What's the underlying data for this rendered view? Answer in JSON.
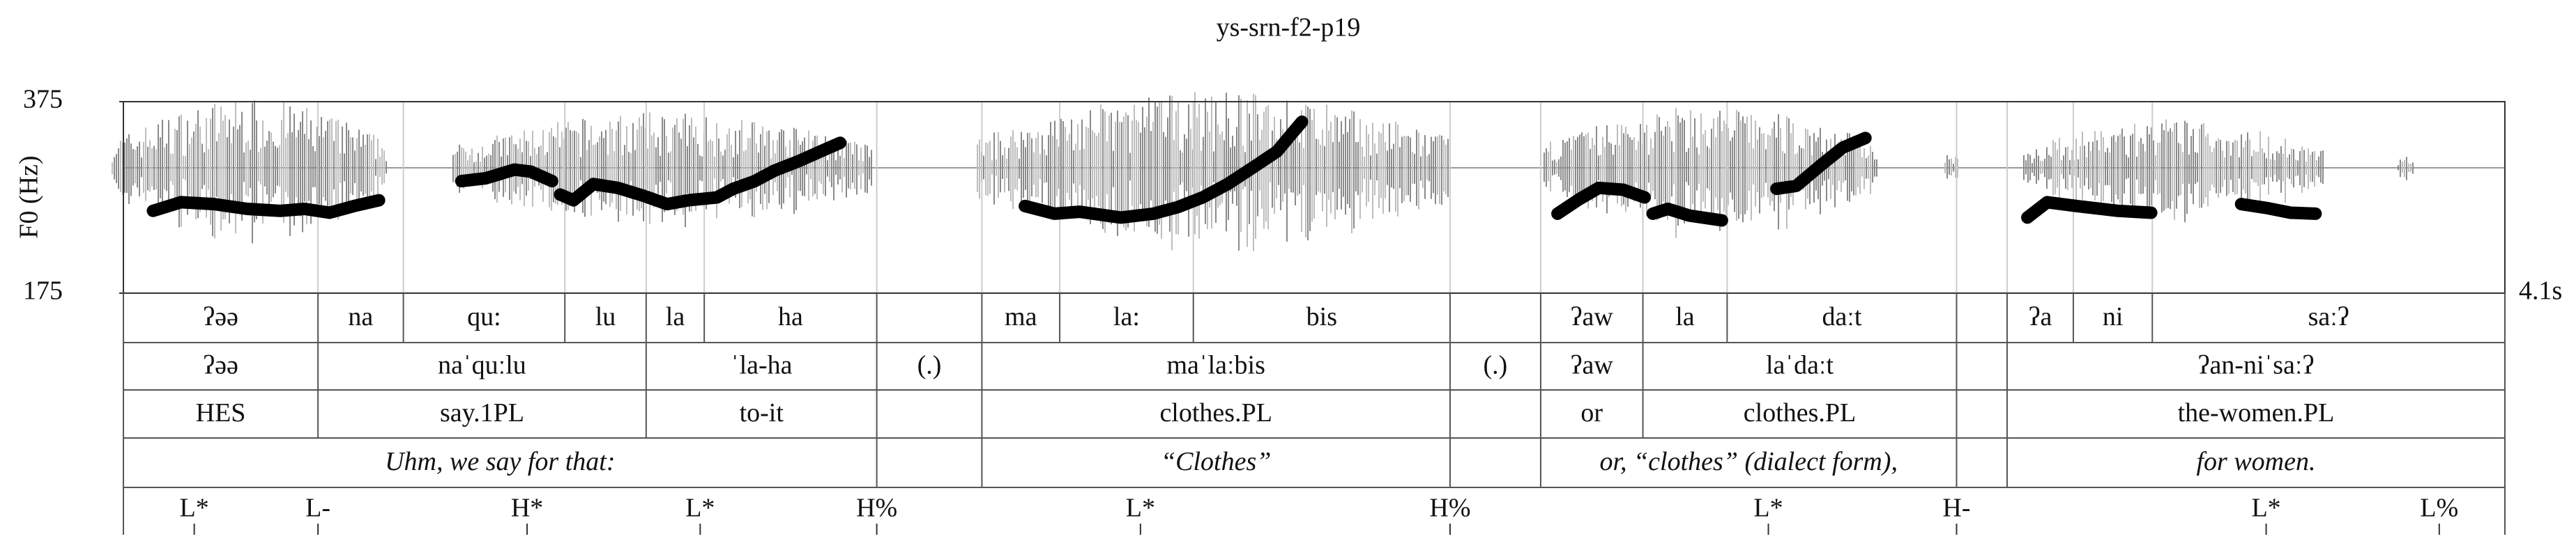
{
  "chart_data": {
    "type": "pitch-track",
    "title": "ys-srn-f2-p19",
    "y_label": "F0 (Hz)",
    "ylim": [
      175,
      375
    ],
    "yticks": [
      175,
      375
    ],
    "xlim": [
      0,
      4.1
    ],
    "xticks": [
      {
        "value": 4.1,
        "label": "4.1s"
      }
    ],
    "color": "#000000",
    "x": [
      0.051,
      0.099,
      0.156,
      0.213,
      0.27,
      0.312,
      0.355,
      0.397,
      0.44,
      null,
      0.582,
      0.624,
      0.673,
      0.701,
      0.738,
      null,
      0.752,
      0.775,
      0.809,
      0.851,
      0.894,
      0.936,
      0.973,
      1.022,
      1.05,
      1.087,
      1.121,
      1.163,
      1.2,
      1.234,
      null,
      1.552,
      1.603,
      1.646,
      1.717,
      1.773,
      1.816,
      1.858,
      1.901,
      1.944,
      1.986,
      2.015,
      2.029,
      null,
      2.469,
      2.506,
      2.54,
      2.582,
      2.619,
      null,
      2.633,
      2.659,
      2.696,
      2.752,
      null,
      2.846,
      2.88,
      2.923,
      2.96,
      2.999,
      null,
      3.278,
      3.312,
      3.363,
      3.434,
      3.491,
      null,
      3.646,
      3.689,
      3.731,
      3.774
    ],
    "values": [
      261,
      270,
      268,
      263,
      261,
      263,
      259,
      266,
      272,
      null,
      292,
      295,
      304,
      302,
      292,
      null,
      278,
      272,
      289,
      285,
      277,
      268,
      272,
      275,
      284,
      292,
      303,
      313,
      323,
      332,
      null,
      266,
      258,
      260,
      254,
      258,
      265,
      275,
      289,
      306,
      323,
      344,
      354,
      null,
      258,
      273,
      285,
      283,
      275,
      null,
      258,
      263,
      256,
      251,
      null,
      284,
      287,
      309,
      327,
      337,
      null,
      254,
      270,
      266,
      261,
      259,
      null,
      268,
      264,
      259,
      258
    ],
    "tiers": [
      {
        "bounds": [
          0,
          0.335,
          0.482,
          0.76,
          0.9,
          1.0,
          1.297,
          1.478,
          1.612,
          1.842,
          2.284,
          2.44,
          2.616,
          2.761,
          3.156,
          3.243,
          3.357,
          3.493,
          4.1
        ],
        "labels": [
          "ʔəə",
          "na",
          "qu:",
          "lu",
          "la",
          "ha",
          null,
          "ma",
          "la:",
          "bis",
          null,
          "ʔaw",
          "la",
          "daːt",
          null,
          "ʔa",
          "ni",
          "saːʔ"
        ]
      },
      {
        "bounds": [
          0,
          0.335,
          0.9,
          1.297,
          1.478,
          2.284,
          2.44,
          2.616,
          3.156,
          3.243,
          4.1
        ],
        "labels": [
          "ʔəə",
          "naˈquːlu",
          "ˈla-ha",
          "(.)",
          "maˈlaːbis",
          "(.)",
          "ʔaw",
          "laˈdaːt",
          null,
          "ʔan-niˈsaːʔ"
        ]
      },
      {
        "bounds": [
          0,
          0.335,
          0.9,
          1.297,
          1.478,
          2.284,
          2.44,
          2.616,
          3.156,
          3.243,
          4.1
        ],
        "labels": [
          "HES",
          "say.1PL",
          "to-it",
          null,
          "clothes.PL",
          null,
          "or",
          "clothes.PL",
          null,
          "the-women.PL"
        ]
      },
      {
        "bounds": [
          0,
          1.297,
          1.478,
          2.284,
          2.44,
          3.156,
          3.243,
          4.1
        ],
        "labels": [
          "Uhm, we say for that:",
          null,
          "“Clothes”",
          null,
          "or, “clothes” (dialect form),",
          null,
          "for women."
        ],
        "style": "italic"
      }
    ],
    "tones": {
      "times": [
        0.122,
        0.335,
        0.695,
        0.993,
        1.297,
        1.751,
        2.284,
        2.832,
        3.156,
        3.689,
        3.987
      ],
      "labels": [
        "L*",
        "L-",
        "H*",
        "L*",
        "H%",
        "L*",
        "H%",
        "L*",
        "H-",
        "L*",
        "L%"
      ]
    }
  }
}
